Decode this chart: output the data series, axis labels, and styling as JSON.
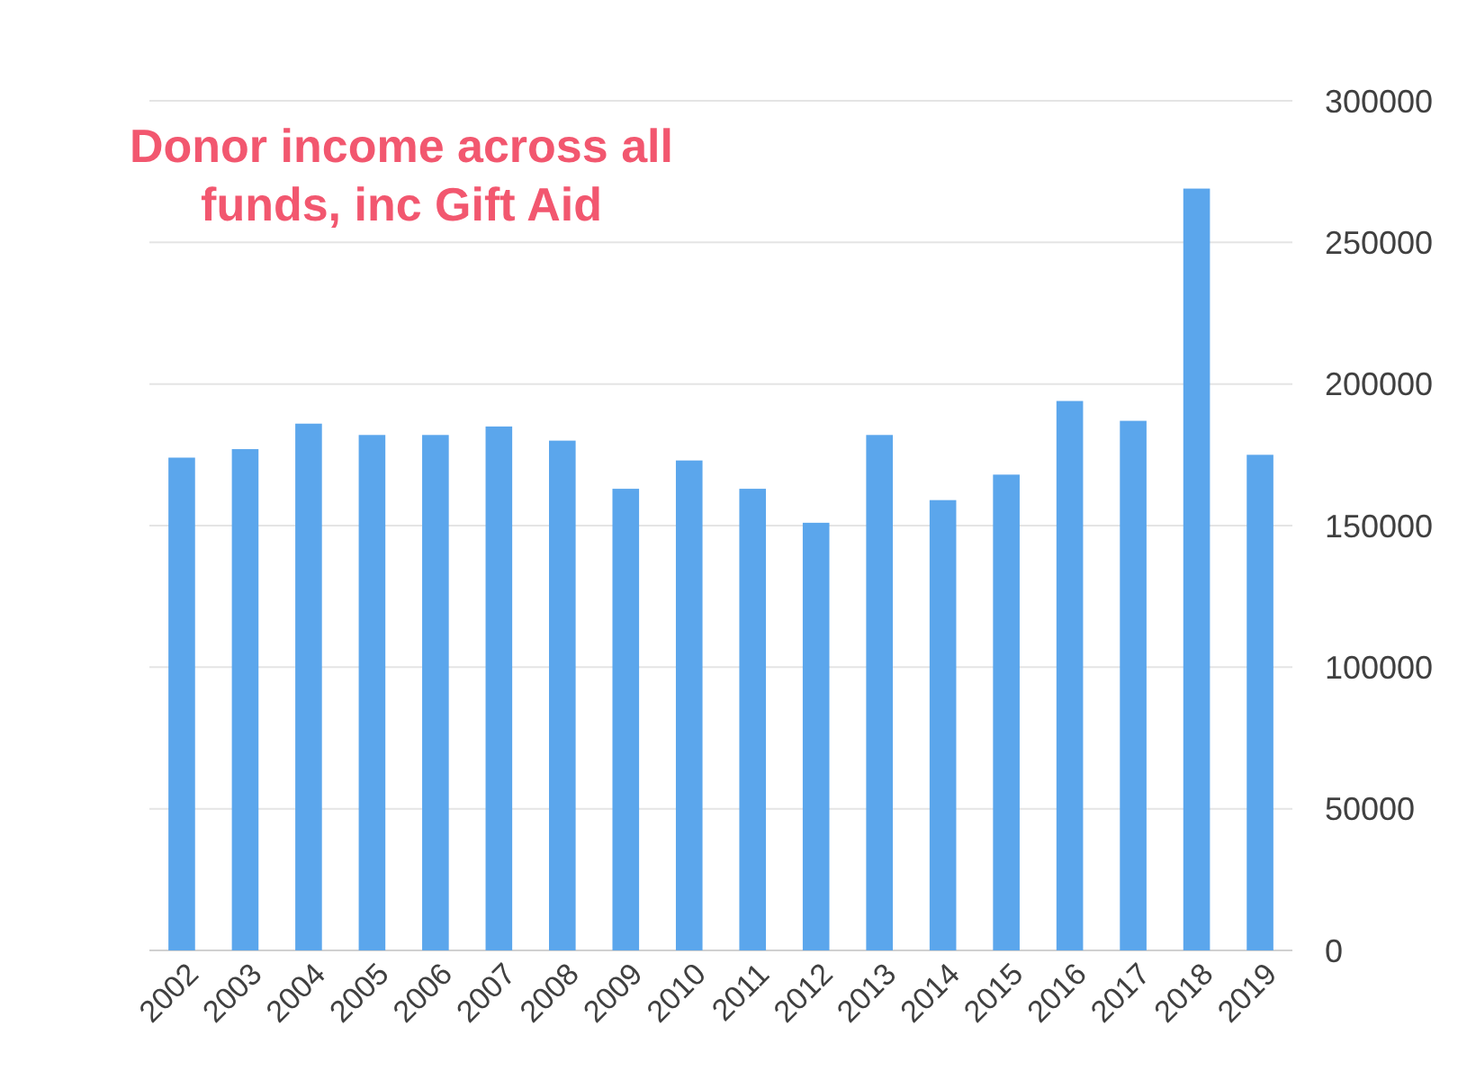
{
  "chart_data": {
    "type": "bar",
    "title": "Donor income across all funds, inc Gift Aid",
    "categories": [
      "2002",
      "2003",
      "2004",
      "2005",
      "2006",
      "2007",
      "2008",
      "2009",
      "2010",
      "2011",
      "2012",
      "2013",
      "2014",
      "2015",
      "2016",
      "2017",
      "2018",
      "2019"
    ],
    "values": [
      174000,
      177000,
      186000,
      182000,
      182000,
      185000,
      180000,
      163000,
      173000,
      163000,
      151000,
      182000,
      159000,
      168000,
      194000,
      187000,
      269000,
      175000
    ],
    "color": "#5ba6ec",
    "ylim": [
      0,
      300000
    ],
    "yticks": [
      0,
      50000,
      100000,
      150000,
      200000,
      250000,
      300000
    ],
    "grid": "y"
  }
}
